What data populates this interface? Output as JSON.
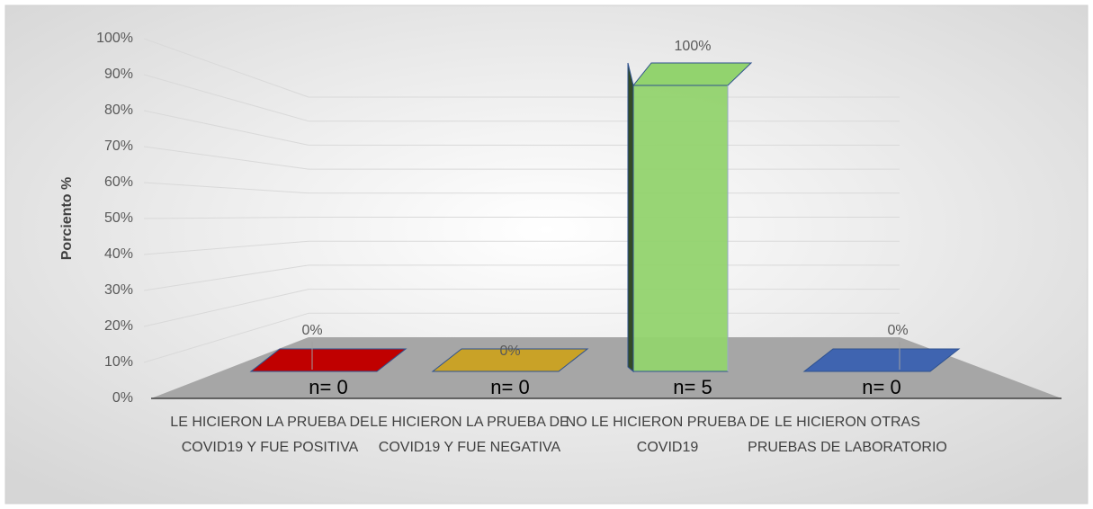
{
  "chart_data": {
    "type": "bar3d",
    "y_label": "Porciento %",
    "categories": [
      "LE HICIERON LA PRUEBA DE COVID19 Y FUE POSITIVA",
      "LE HICIERON LA PRUEBA DE COVID19 Y FUE NEGATIVA",
      "NO LE HICIERON PRUEBA DE COVID19",
      "LE HICIERON OTRAS PRUEBAS DE LABORATORIO"
    ],
    "values": [
      0,
      0,
      100,
      0
    ],
    "value_labels": [
      "0%",
      "0%",
      "100%",
      "0%"
    ],
    "annotations": [
      "n= 0",
      "n= 0",
      "n= 5",
      "n= 0"
    ],
    "colors": [
      "#c00000",
      "#c9a227",
      "#92d36e",
      "#3f64b0"
    ],
    "ylim": [
      0,
      100
    ],
    "yticks": [
      {
        "value": 0,
        "label": "0%"
      },
      {
        "value": 10,
        "label": "10%"
      },
      {
        "value": 20,
        "label": "20%"
      },
      {
        "value": 30,
        "label": "30%"
      },
      {
        "value": 40,
        "label": "40%"
      },
      {
        "value": 50,
        "label": "50%"
      },
      {
        "value": 60,
        "label": "60%"
      },
      {
        "value": 70,
        "label": "70%"
      },
      {
        "value": 80,
        "label": "80%"
      },
      {
        "value": 90,
        "label": "90%"
      },
      {
        "value": 100,
        "label": "100%"
      }
    ],
    "grid": true
  }
}
